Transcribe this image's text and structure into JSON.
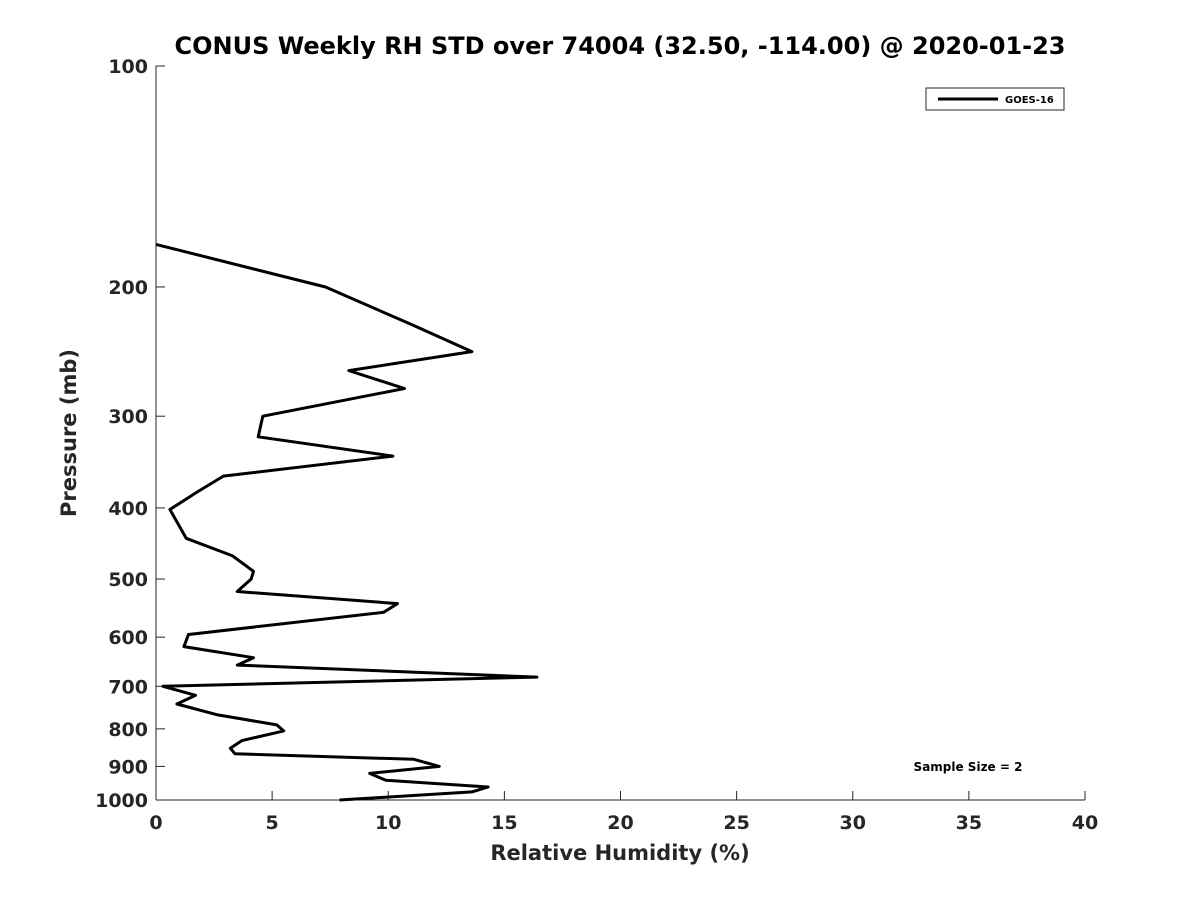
{
  "chart_data": {
    "type": "line",
    "title": "CONUS Weekly RH STD over 74004 (32.50, -114.00) @ 2020-01-23",
    "xlabel": "Relative Humidity (%)",
    "ylabel": "Pressure (mb)",
    "xlim": [
      0,
      40
    ],
    "ylim": [
      100,
      1000
    ],
    "yscale": "log",
    "y_reversed": true,
    "xticks": [
      0,
      5,
      10,
      15,
      20,
      25,
      30,
      35,
      40
    ],
    "yticks": [
      100,
      200,
      300,
      400,
      500,
      600,
      700,
      800,
      900,
      1000
    ],
    "grid": false,
    "legend_position": "top-right",
    "series": [
      {
        "name": "GOES-16",
        "color": "#000000",
        "x": [
          0.0,
          7.3,
          11.0,
          13.6,
          8.3,
          10.7,
          4.6,
          4.4,
          10.2,
          2.9,
          1.8,
          0.6,
          1.3,
          3.3,
          4.2,
          4.1,
          3.5,
          10.4,
          9.8,
          1.4,
          1.2,
          4.2,
          3.5,
          16.4,
          0.3,
          1.7,
          0.9,
          2.6,
          5.2,
          5.5,
          3.7,
          3.2,
          3.4,
          11.1,
          12.2,
          9.2,
          9.9,
          14.3,
          13.6,
          7.9
        ],
        "y": [
          175,
          200,
          225,
          245,
          260,
          275,
          300,
          320,
          340,
          362,
          380,
          402,
          440,
          465,
          488,
          500,
          520,
          540,
          555,
          595,
          618,
          640,
          655,
          680,
          700,
          720,
          740,
          765,
          790,
          805,
          830,
          850,
          865,
          880,
          900,
          920,
          940,
          960,
          975,
          1000
        ]
      }
    ],
    "annotations": [
      "Sample Size = 2"
    ]
  }
}
